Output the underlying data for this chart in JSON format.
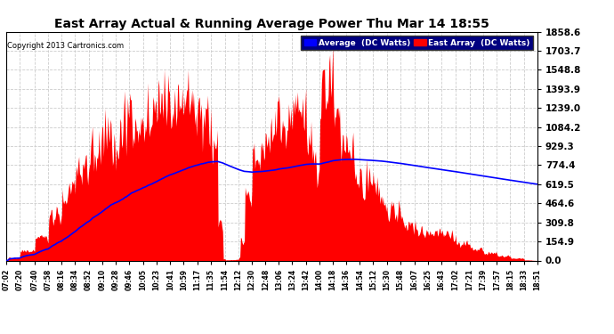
{
  "title": "East Array Actual & Running Average Power Thu Mar 14 18:55",
  "copyright": "Copyright 2013 Cartronics.com",
  "legend_labels": [
    "Average  (DC Watts)",
    "East Array  (DC Watts)"
  ],
  "legend_colors": [
    "#0000ff",
    "#ff0000"
  ],
  "yticks": [
    0.0,
    154.9,
    309.8,
    464.6,
    619.5,
    774.4,
    929.3,
    1084.2,
    1239.0,
    1393.9,
    1548.8,
    1703.7,
    1858.6
  ],
  "ymax": 1858.6,
  "background_color": "#ffffff",
  "fill_color": "#ff0000",
  "avg_color": "#0000ff",
  "xtick_labels": [
    "07:02",
    "07:20",
    "07:40",
    "07:58",
    "08:16",
    "08:34",
    "08:52",
    "09:10",
    "09:28",
    "09:46",
    "10:05",
    "10:23",
    "10:41",
    "10:59",
    "11:17",
    "11:35",
    "11:54",
    "12:12",
    "12:30",
    "12:48",
    "13:06",
    "13:24",
    "13:42",
    "14:00",
    "14:18",
    "14:36",
    "14:54",
    "15:12",
    "15:30",
    "15:48",
    "16:07",
    "16:25",
    "16:43",
    "17:02",
    "17:21",
    "17:39",
    "17:57",
    "18:15",
    "18:33",
    "18:51"
  ],
  "legend_bg": "#000080",
  "legend_text_color": "#ffffff"
}
